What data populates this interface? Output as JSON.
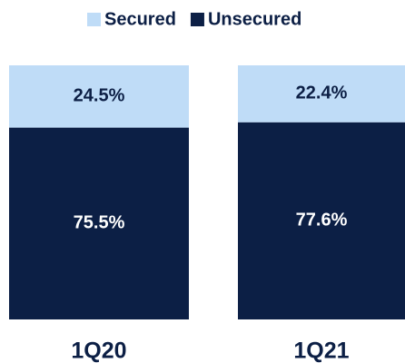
{
  "chart_data": {
    "type": "stacked_bar",
    "categories": [
      "1Q20",
      "1Q21"
    ],
    "series": [
      {
        "name": "Unsecured",
        "color": "#0c1f45",
        "values": [
          75.5,
          77.6
        ],
        "value_labels": [
          "75.5%",
          "77.6%"
        ]
      },
      {
        "name": "Secured",
        "color": "#bfdcf7",
        "values": [
          24.5,
          22.4
        ],
        "value_labels": [
          "24.5%",
          "22.4%"
        ]
      }
    ],
    "legend_order": [
      "Secured",
      "Unsecured"
    ],
    "ylim": [
      0,
      100
    ],
    "legend": "top"
  }
}
